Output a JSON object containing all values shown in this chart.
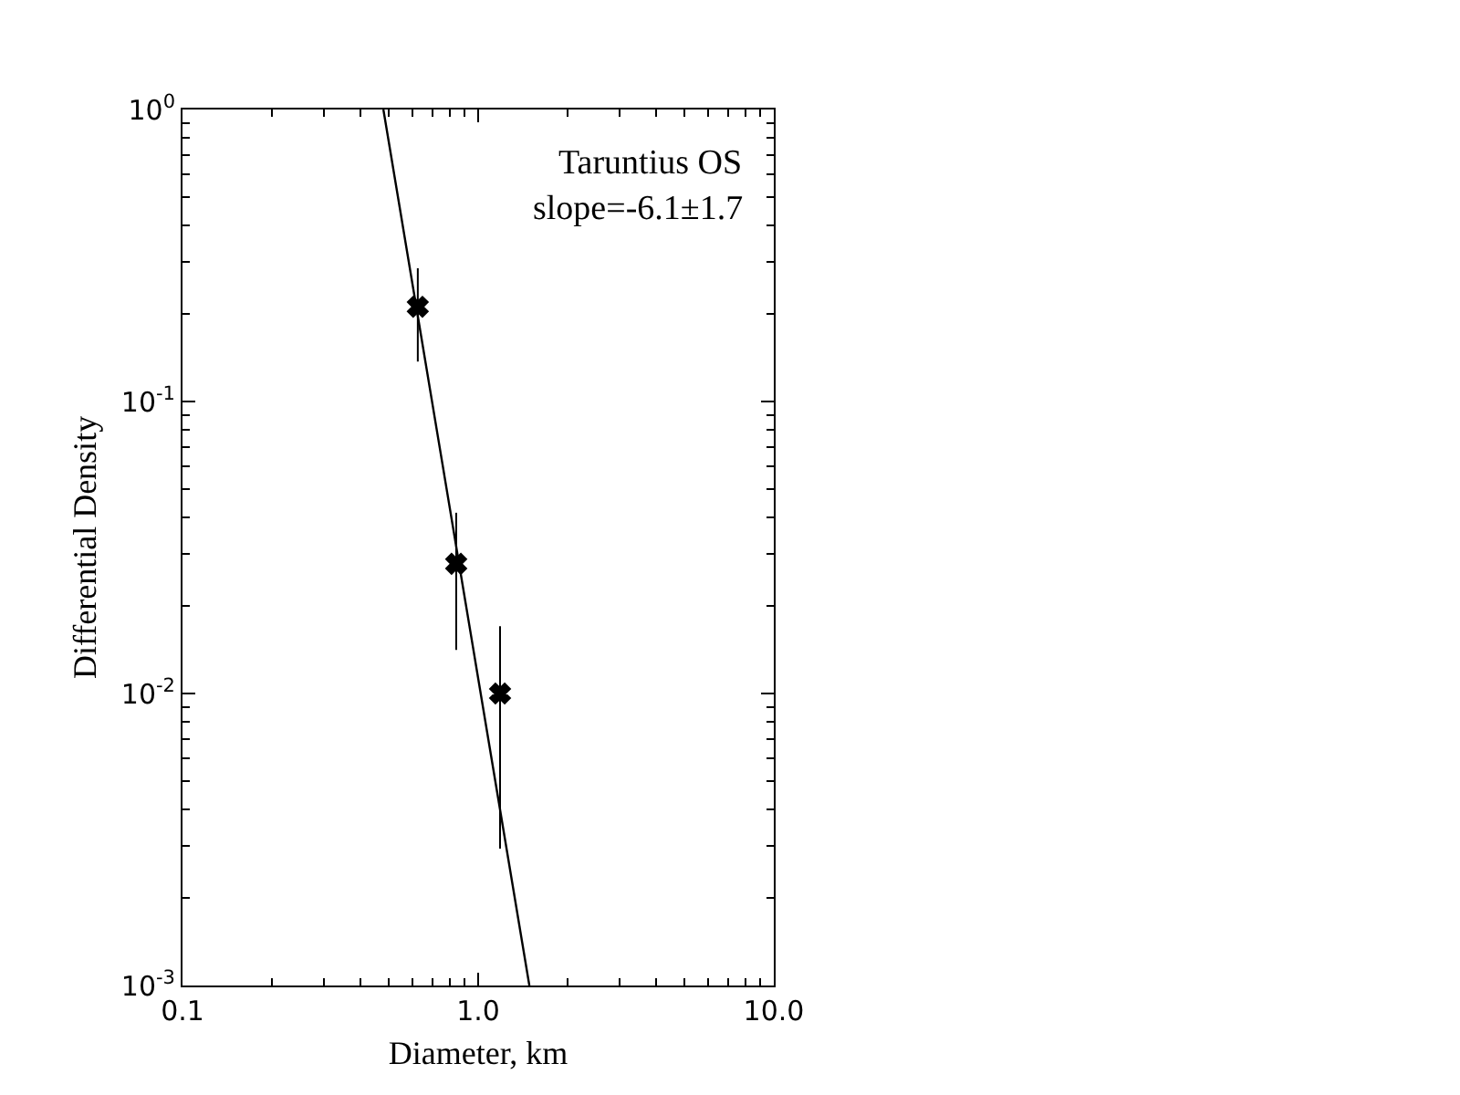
{
  "chart_data": {
    "type": "scatter",
    "xlabel": "Diameter, km",
    "ylabel": "Differential Density",
    "log": "xy",
    "grid": false,
    "xlim": [
      0.1,
      10
    ],
    "xticks": [
      0.1,
      {
        "value": 1,
        "label": "1.0"
      },
      {
        "value": 10,
        "label": "10.0"
      }
    ],
    "ylim": [
      0.001,
      1
    ],
    "yticks": [
      {
        "value": 0.001,
        "label": "10$^{-3}$"
      },
      {
        "value": 0.01,
        "label": "10$^{-2}$"
      },
      {
        "value": 0.1,
        "label": "10$^{-1}$"
      },
      {
        "value": 1,
        "label": "10$^{0}$"
      }
    ],
    "annotations": [
      "Taruntius OS",
      "slope=-6.1±1.7"
    ],
    "series": [
      {
        "color": "#000000",
        "marker": "cross",
        "x": [
          0.625,
          0.843,
          1.186
        ],
        "values": [
          0.211,
          0.0278,
          0.01
        ],
        "errors": [
          [
            0.137,
            0.286
          ],
          [
            0.0141,
            0.0416
          ],
          [
            0.00294,
            0.017
          ]
        ]
      },
      {
        "type": "line",
        "color": "#000000",
        "marker": "none",
        "line_style": "solid",
        "x": [
          0.478,
          1.49
        ],
        "values": [
          1,
          0.001
        ]
      }
    ]
  }
}
